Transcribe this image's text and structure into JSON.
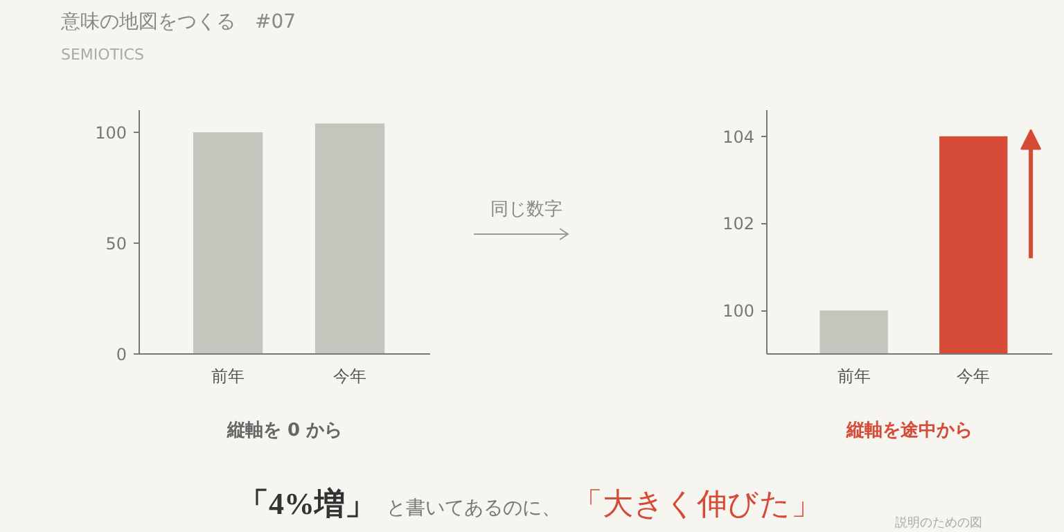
{
  "chart_data": [
    {
      "type": "bar",
      "title": "意味の地図をつくる　#07",
      "subtitle": "SEMIOTICS",
      "xlabel": "縦軸を 0 から",
      "categories": [
        "前年",
        "今年"
      ],
      "values": [
        100,
        104
      ],
      "colors": [
        "#c5c4bd",
        "#c5c4bd"
      ],
      "ylim": [
        0,
        110
      ],
      "yticks": [
        0,
        50,
        100
      ],
      "grid": false,
      "annotations": [
        "同じ数字",
        "「4%増」",
        "と書いてあるのに、",
        "「大きく伸びた」",
        "説明のための図"
      ]
    },
    {
      "type": "bar",
      "xlabel": "縦軸を途中から",
      "categories": [
        "前年",
        "今年"
      ],
      "values": [
        100,
        104
      ],
      "colors": [
        "#c5c4bd",
        "#d64a38"
      ],
      "ylim": [
        99,
        104.6
      ],
      "yticks": [
        100,
        102,
        104
      ],
      "grid": false
    }
  ]
}
